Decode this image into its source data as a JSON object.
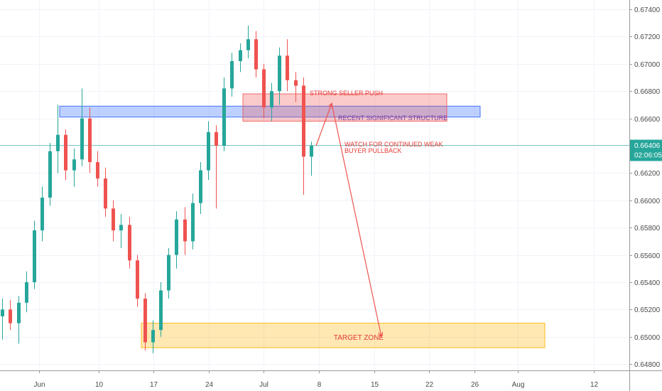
{
  "chart_data": {
    "type": "candlestick",
    "title": "",
    "xlabel": "",
    "ylabel": "",
    "ylim": [
      0.64665,
      0.67572
    ],
    "y_ticks": [
      "0.67400",
      "0.67200",
      "0.67000",
      "0.66800",
      "0.66600",
      "0.66400",
      "0.66200",
      "0.66000",
      "0.65800",
      "0.65600",
      "0.65400",
      "0.65200",
      "0.65000",
      "0.64800"
    ],
    "x_ticks": [
      "Jun",
      "10",
      "17",
      "24",
      "Jul",
      "8",
      "15",
      "22",
      "26",
      "Aug",
      "12"
    ],
    "grid": true,
    "current_price": {
      "price": "0.66406",
      "countdown": "02:06:05",
      "color": "#26a69a"
    },
    "colors": {
      "up": "#26a69a",
      "down": "#ef5350"
    },
    "zones": [
      {
        "id": "blue-structure",
        "price_top": 0.6669,
        "price_bottom": 0.6661,
        "color": "#2962ff"
      },
      {
        "id": "red-supply",
        "price_top": 0.6678,
        "price_bottom": 0.6658,
        "color": "#ef5350"
      },
      {
        "id": "target-zone",
        "price_top": 0.651,
        "price_bottom": 0.6492,
        "color": "#ffb300",
        "label": "TARGET ZONE"
      }
    ],
    "annotations": [
      {
        "id": "strong-seller-push",
        "text": "STRONG SELLER PUSH"
      },
      {
        "id": "recent-structure",
        "text": "RECENT SIGNIFICANT STRUCTURE"
      },
      {
        "id": "watch-line-1",
        "text": "WATCH FOR CONTINUED WEAK"
      },
      {
        "id": "watch-line-2",
        "text": "BUYER PULLBACK"
      }
    ],
    "path": {
      "color": "#ef5350",
      "points": [
        {
          "date": "Jul 6",
          "price": 0.664
        },
        {
          "date": "Jul 9",
          "price": 0.6671
        },
        {
          "date": "Jul 16",
          "price": 0.65
        }
      ]
    },
    "series": [
      {
        "candles": [
          {
            "date": "May 27",
            "o": 0.6545,
            "h": 0.6554,
            "l": 0.6532,
            "c": 0.6538
          },
          {
            "date": "May 28",
            "o": 0.6538,
            "h": 0.6546,
            "l": 0.651,
            "c": 0.6515
          },
          {
            "date": "May 29",
            "o": 0.6515,
            "h": 0.6528,
            "l": 0.6498,
            "c": 0.652
          },
          {
            "date": "May 30",
            "o": 0.652,
            "h": 0.6527,
            "l": 0.6505,
            "c": 0.651
          },
          {
            "date": "May 31",
            "o": 0.651,
            "h": 0.653,
            "l": 0.6495,
            "c": 0.6525
          },
          {
            "date": "Jun 1",
            "o": 0.6525,
            "h": 0.6548,
            "l": 0.6518,
            "c": 0.654
          },
          {
            "date": "Jun 2",
            "o": 0.654,
            "h": 0.6585,
            "l": 0.6535,
            "c": 0.6578
          },
          {
            "date": "Jun 3",
            "o": 0.6578,
            "h": 0.661,
            "l": 0.657,
            "c": 0.6602
          },
          {
            "date": "Jun 4",
            "o": 0.6602,
            "h": 0.6642,
            "l": 0.6596,
            "c": 0.6636
          },
          {
            "date": "Jun 5",
            "o": 0.6636,
            "h": 0.667,
            "l": 0.662,
            "c": 0.6648
          },
          {
            "date": "Jun 6",
            "o": 0.6648,
            "h": 0.6652,
            "l": 0.6615,
            "c": 0.6622
          },
          {
            "date": "Jun 7",
            "o": 0.6622,
            "h": 0.6638,
            "l": 0.661,
            "c": 0.663
          },
          {
            "date": "Jun 8",
            "o": 0.663,
            "h": 0.6682,
            "l": 0.6625,
            "c": 0.666
          },
          {
            "date": "Jun 9",
            "o": 0.666,
            "h": 0.6668,
            "l": 0.662,
            "c": 0.6628
          },
          {
            "date": "Jun 10",
            "o": 0.6628,
            "h": 0.6636,
            "l": 0.661,
            "c": 0.6616
          },
          {
            "date": "Jun 11",
            "o": 0.6616,
            "h": 0.6624,
            "l": 0.6588,
            "c": 0.6594
          },
          {
            "date": "Jun 12",
            "o": 0.6594,
            "h": 0.66,
            "l": 0.657,
            "c": 0.6578
          },
          {
            "date": "Jun 13",
            "o": 0.6578,
            "h": 0.659,
            "l": 0.6565,
            "c": 0.6582
          },
          {
            "date": "Jun 14",
            "o": 0.6582,
            "h": 0.6588,
            "l": 0.655,
            "c": 0.6556
          },
          {
            "date": "Jun 15",
            "o": 0.6556,
            "h": 0.656,
            "l": 0.6522,
            "c": 0.6528
          },
          {
            "date": "Jun 16",
            "o": 0.6528,
            "h": 0.6532,
            "l": 0.649,
            "c": 0.6496
          },
          {
            "date": "Jun 17",
            "o": 0.6496,
            "h": 0.6512,
            "l": 0.6488,
            "c": 0.6505
          },
          {
            "date": "Jun 18",
            "o": 0.6505,
            "h": 0.654,
            "l": 0.65,
            "c": 0.6534
          },
          {
            "date": "Jun 19",
            "o": 0.6534,
            "h": 0.6565,
            "l": 0.6528,
            "c": 0.656
          },
          {
            "date": "Jun 20",
            "o": 0.656,
            "h": 0.6592,
            "l": 0.655,
            "c": 0.6586
          },
          {
            "date": "Jun 21",
            "o": 0.6586,
            "h": 0.6595,
            "l": 0.656,
            "c": 0.657
          },
          {
            "date": "Jun 22",
            "o": 0.657,
            "h": 0.6605,
            "l": 0.6564,
            "c": 0.6598
          },
          {
            "date": "Jun 23",
            "o": 0.6598,
            "h": 0.6628,
            "l": 0.659,
            "c": 0.6622
          },
          {
            "date": "Jun 24",
            "o": 0.6622,
            "h": 0.6658,
            "l": 0.6615,
            "c": 0.665
          },
          {
            "date": "Jun 25",
            "o": 0.665,
            "h": 0.6655,
            "l": 0.6594,
            "c": 0.664
          },
          {
            "date": "Jun 26",
            "o": 0.664,
            "h": 0.669,
            "l": 0.6636,
            "c": 0.6682
          },
          {
            "date": "Jun 27",
            "o": 0.6682,
            "h": 0.6708,
            "l": 0.6676,
            "c": 0.6702
          },
          {
            "date": "Jun 28",
            "o": 0.6702,
            "h": 0.6715,
            "l": 0.6694,
            "c": 0.671
          },
          {
            "date": "Jun 29",
            "o": 0.671,
            "h": 0.6728,
            "l": 0.6704,
            "c": 0.6718
          },
          {
            "date": "Jun 30",
            "o": 0.6718,
            "h": 0.6724,
            "l": 0.669,
            "c": 0.6696
          },
          {
            "date": "Jul 1",
            "o": 0.6696,
            "h": 0.67,
            "l": 0.666,
            "c": 0.6668
          },
          {
            "date": "Jul 2",
            "o": 0.6668,
            "h": 0.6686,
            "l": 0.6658,
            "c": 0.668
          },
          {
            "date": "Jul 3",
            "o": 0.668,
            "h": 0.6712,
            "l": 0.667,
            "c": 0.6706
          },
          {
            "date": "Jul 4",
            "o": 0.6706,
            "h": 0.6718,
            "l": 0.668,
            "c": 0.6688
          },
          {
            "date": "Jul 5",
            "o": 0.6688,
            "h": 0.6694,
            "l": 0.6672,
            "c": 0.6684
          },
          {
            "date": "Jul 6",
            "o": 0.6684,
            "h": 0.669,
            "l": 0.6604,
            "c": 0.6632
          },
          {
            "date": "Jul 7",
            "o": 0.6632,
            "h": 0.6643,
            "l": 0.6618,
            "c": 0.664
          }
        ]
      }
    ]
  }
}
